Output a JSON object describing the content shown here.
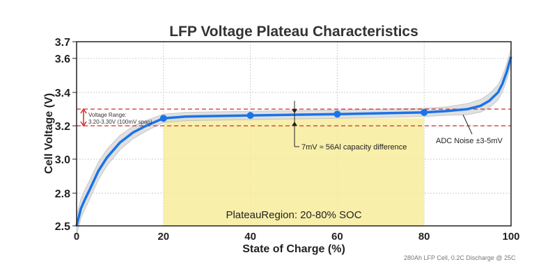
{
  "chart_data": {
    "type": "line",
    "title": "LFP Voltage Plateau Characteristics",
    "xlabel": "State of Charge (%)",
    "ylabel": "Cell Voltage (V)",
    "xlim": [
      0,
      100
    ],
    "ylim": [
      2.5,
      3.7
    ],
    "x_ticks": [
      "0",
      "20",
      "40",
      "60",
      "80",
      "100"
    ],
    "y_ticks": [
      "2.5",
      "2.8",
      "3.0",
      "3.2",
      "3.4",
      "3.6",
      "3.7"
    ],
    "grid": true,
    "series": [
      {
        "color": "#1a73e8",
        "x": [
          0,
          1,
          2,
          3,
          5,
          7,
          10,
          13,
          16,
          20,
          25,
          30,
          40,
          50,
          60,
          70,
          80,
          85,
          90,
          93,
          95,
          97,
          98,
          99,
          100
        ],
        "y": [
          2.5,
          2.66,
          2.75,
          2.82,
          2.93,
          3.01,
          3.1,
          3.16,
          3.2,
          3.245,
          3.255,
          3.258,
          3.262,
          3.266,
          3.27,
          3.275,
          3.28,
          3.288,
          3.3,
          3.32,
          3.35,
          3.4,
          3.45,
          3.52,
          3.61
        ]
      }
    ],
    "markers": {
      "x": [
        20,
        40,
        60,
        80
      ],
      "y": [
        3.245,
        3.262,
        3.27,
        3.28
      ]
    },
    "noise_band_color": "#d9d9d9",
    "reference_lines": {
      "values": [
        3.2,
        3.3
      ],
      "color": "#d62728"
    },
    "plateau_region": {
      "x": [
        20,
        80
      ],
      "ymax": 3.245,
      "color": "#f7ec9c",
      "label": "PlateauRegion: 20-80% SOC"
    },
    "annotations": {
      "voltage_range_line1": "Voltage Range:",
      "voltage_range_line2": "3.20-3.30V (100mV span)",
      "capacity": "7mV ≈ 56Al capacity difference",
      "noise": "ADC Noise ±3-5mV"
    },
    "footnote": "280Ah LFP Cell, 0.2C Discharge @ 25C"
  }
}
